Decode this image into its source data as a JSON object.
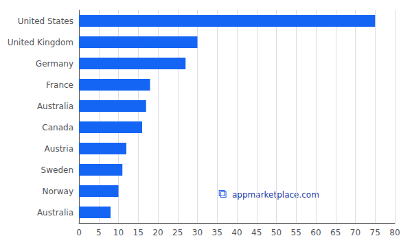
{
  "chart_data": {
    "type": "bar",
    "orientation": "horizontal",
    "categories": [
      "United States",
      "United Kingdom",
      "Germany",
      "France",
      "Australia",
      "Canada",
      "Austria",
      "Sweden",
      "Norway",
      "Australia"
    ],
    "values": [
      75,
      30,
      27,
      18,
      17,
      16,
      12,
      11,
      10,
      8
    ],
    "color": "#1565f5",
    "xlim": [
      0,
      80
    ],
    "xticks": [
      0,
      5,
      10,
      15,
      20,
      25,
      30,
      35,
      40,
      45,
      50,
      55,
      60,
      65,
      70,
      75,
      80
    ],
    "grid": true,
    "annotations": [
      {
        "text": "⧉",
        "color": "#1a5ce8"
      },
      {
        "text": "appmarketplace.com",
        "color": "#1a3aaa"
      }
    ]
  }
}
